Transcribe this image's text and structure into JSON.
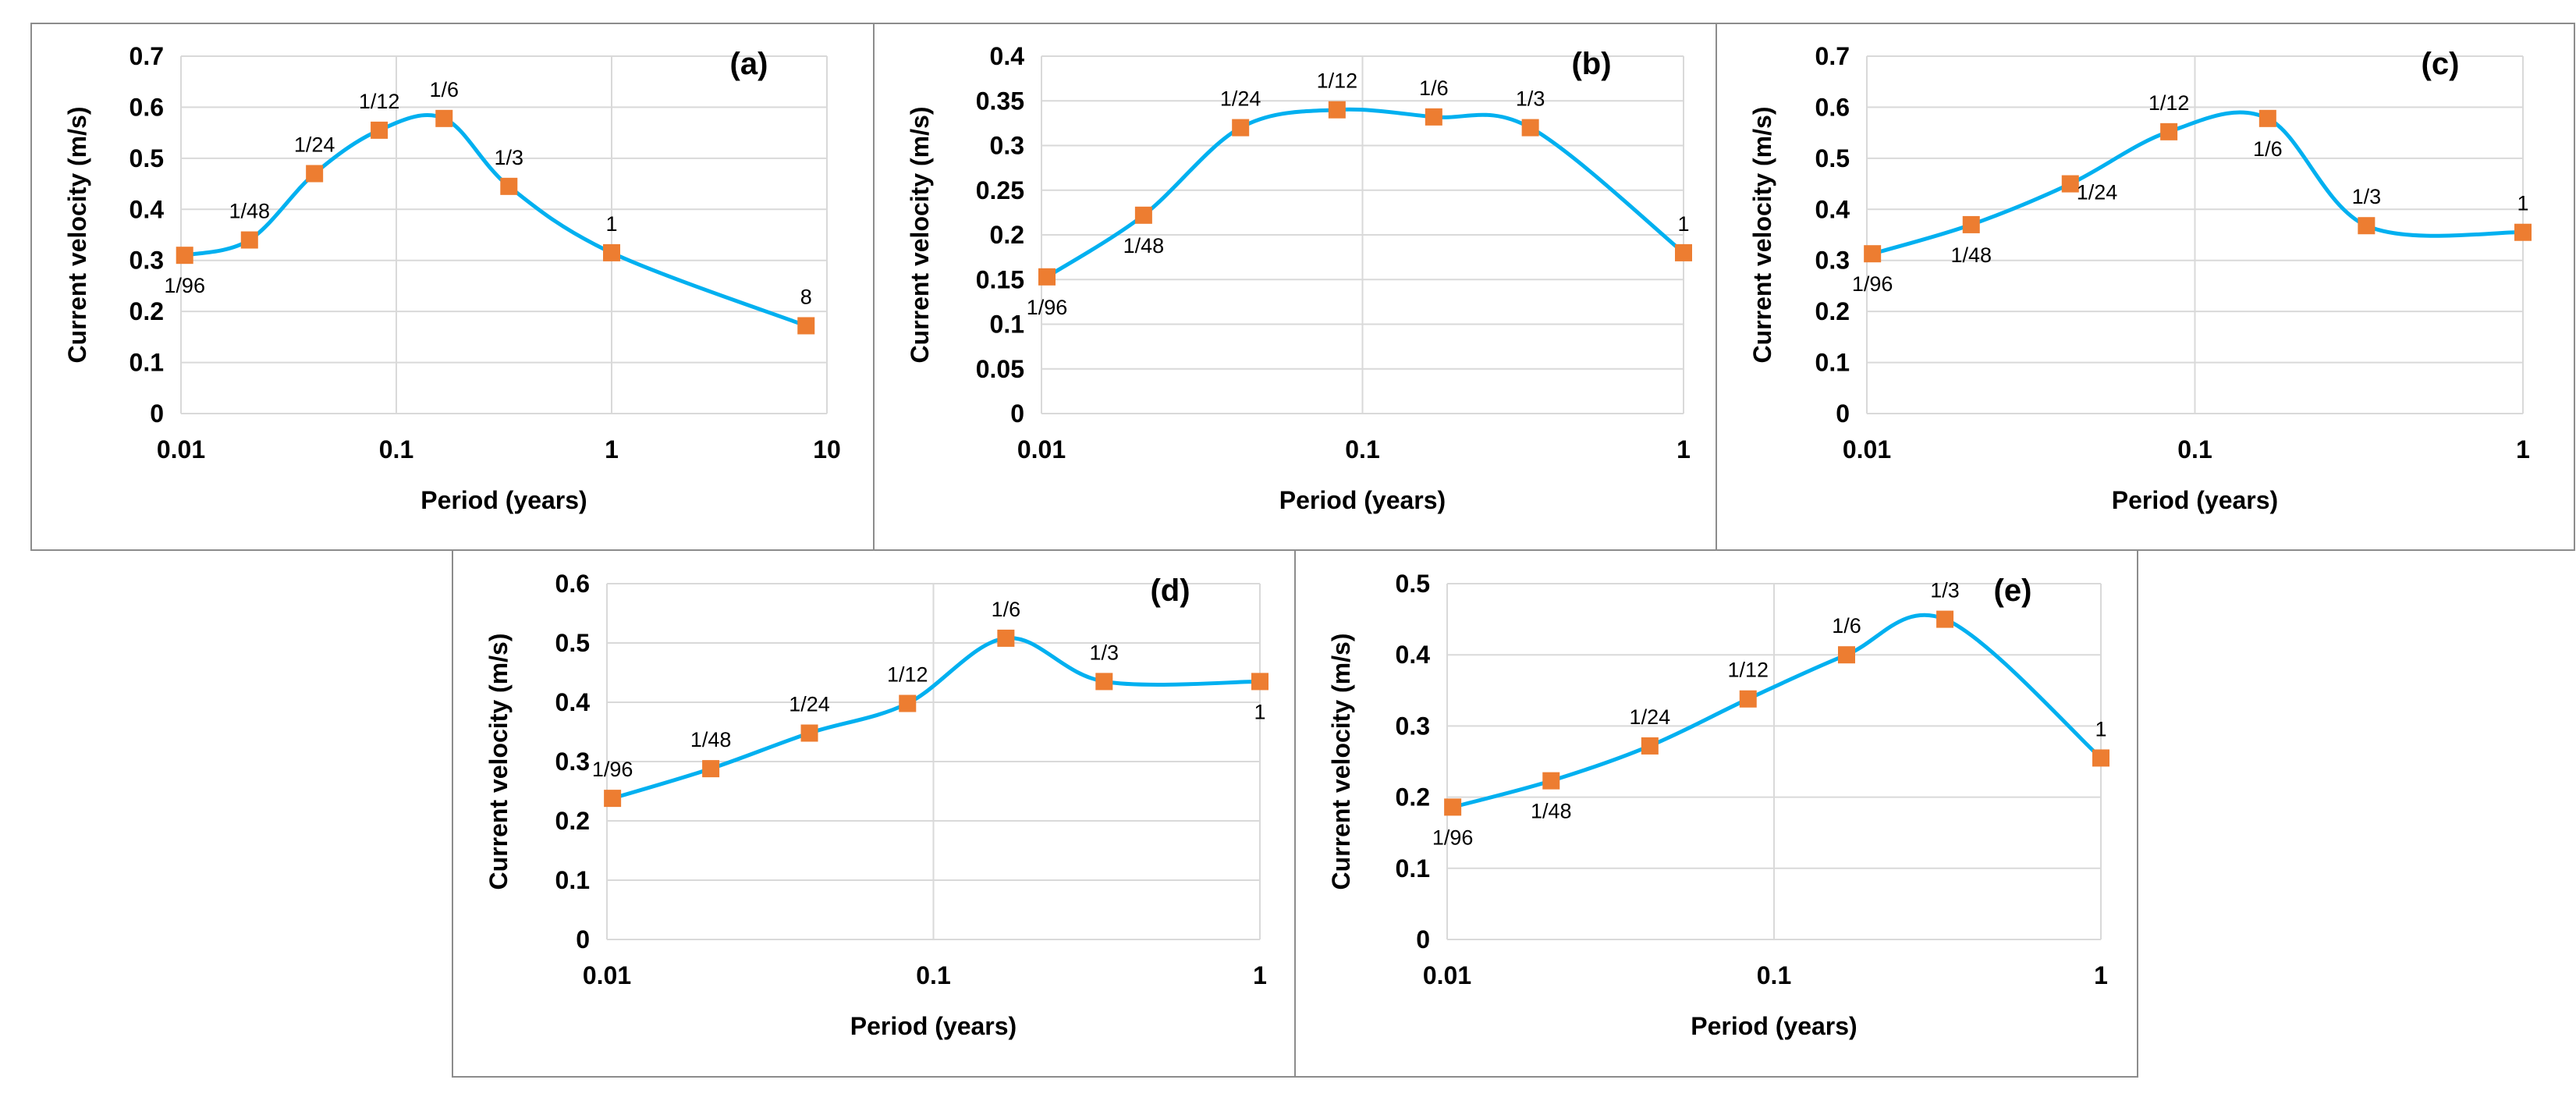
{
  "colors": {
    "line": "#00b0f0",
    "marker": "#ed7d31",
    "grid": "#d9d9d9",
    "border": "#8c8c8c"
  },
  "chart_data": [
    {
      "type": "line",
      "title": "(a)",
      "xlabel": "Period (years)",
      "ylabel": "Current velocity (m/s)",
      "xscale": "log",
      "xlim": [
        0.01,
        10
      ],
      "xticks": [
        0.01,
        0.1,
        1,
        10
      ],
      "xtick_labels": [
        "0.01",
        "0.1",
        "1",
        "10"
      ],
      "ylim": [
        0,
        0.7
      ],
      "yticks": [
        0,
        0.1,
        0.2,
        0.3,
        0.4,
        0.5,
        0.6,
        0.7
      ],
      "ytick_labels": [
        "0",
        "0.1",
        "0.2",
        "0.3",
        "0.4",
        "0.5",
        "0.6",
        "0.7"
      ],
      "x": [
        0.0104,
        0.0208,
        0.0417,
        0.0833,
        0.1667,
        0.3333,
        1,
        8
      ],
      "values": [
        0.31,
        0.34,
        0.47,
        0.555,
        0.578,
        0.445,
        0.315,
        0.172
      ],
      "labels": [
        "1/96",
        "1/48",
        "1/24",
        "1/12",
        "1/6",
        "1/3",
        "1",
        "8"
      ],
      "label_pos": [
        "below",
        "above",
        "above",
        "above",
        "above",
        "above",
        "above",
        "above"
      ]
    },
    {
      "type": "line",
      "title": "(b)",
      "xlabel": "Period (years)",
      "ylabel": "Current velocity (m/s)",
      "xscale": "log",
      "xlim": [
        0.01,
        1
      ],
      "xticks": [
        0.01,
        0.1,
        1
      ],
      "xtick_labels": [
        "0.01",
        "0.1",
        "1"
      ],
      "ylim": [
        0,
        0.4
      ],
      "yticks": [
        0,
        0.05,
        0.1,
        0.15,
        0.2,
        0.25,
        0.3,
        0.35,
        0.4
      ],
      "ytick_labels": [
        "0",
        "0.05",
        "0.1",
        "0.15",
        "0.2",
        "0.25",
        "0.3",
        "0.35",
        "0.4"
      ],
      "x": [
        0.0104,
        0.0208,
        0.0417,
        0.0833,
        0.1667,
        0.3333,
        1
      ],
      "values": [
        0.153,
        0.222,
        0.32,
        0.34,
        0.332,
        0.32,
        0.18
      ],
      "labels": [
        "1/96",
        "1/48",
        "1/24",
        "1/12",
        "1/6",
        "1/3",
        "1"
      ],
      "label_pos": [
        "below",
        "below",
        "above",
        "above",
        "above",
        "above",
        "above"
      ]
    },
    {
      "type": "line",
      "title": "(c)",
      "xlabel": "Period (years)",
      "ylabel": "Current velocity (m/s)",
      "xscale": "log",
      "xlim": [
        0.01,
        1
      ],
      "xticks": [
        0.01,
        0.1,
        1
      ],
      "xtick_labels": [
        "0.01",
        "0.1",
        "1"
      ],
      "ylim": [
        0,
        0.7
      ],
      "yticks": [
        0,
        0.1,
        0.2,
        0.3,
        0.4,
        0.5,
        0.6,
        0.7
      ],
      "ytick_labels": [
        "0",
        "0.1",
        "0.2",
        "0.3",
        "0.4",
        "0.5",
        "0.6",
        "0.7"
      ],
      "x": [
        0.0104,
        0.0208,
        0.0417,
        0.0833,
        0.1667,
        0.3333,
        1
      ],
      "values": [
        0.313,
        0.37,
        0.45,
        0.552,
        0.578,
        0.368,
        0.355
      ],
      "labels": [
        "1/96",
        "1/48",
        "1/24",
        "1/12",
        "1/6",
        "1/3",
        "1"
      ],
      "label_pos": [
        "below",
        "below",
        "right",
        "above",
        "below",
        "above",
        "above"
      ]
    },
    {
      "type": "line",
      "title": "(d)",
      "xlabel": "Period (years)",
      "ylabel": "Current velocity (m/s)",
      "xscale": "log",
      "xlim": [
        0.01,
        1
      ],
      "xticks": [
        0.01,
        0.1,
        1
      ],
      "xtick_labels": [
        "0.01",
        "0.1",
        "1"
      ],
      "ylim": [
        0,
        0.6
      ],
      "yticks": [
        0,
        0.1,
        0.2,
        0.3,
        0.4,
        0.5,
        0.6
      ],
      "ytick_labels": [
        "0",
        "0.1",
        "0.2",
        "0.3",
        "0.4",
        "0.5",
        "0.6"
      ],
      "x": [
        0.0104,
        0.0208,
        0.0417,
        0.0833,
        0.1667,
        0.3333,
        1
      ],
      "values": [
        0.238,
        0.288,
        0.348,
        0.398,
        0.508,
        0.435,
        0.435
      ],
      "labels": [
        "1/96",
        "1/48",
        "1/24",
        "1/12",
        "1/6",
        "1/3",
        "1"
      ],
      "label_pos": [
        "above",
        "above",
        "above",
        "above",
        "above",
        "above",
        "below"
      ]
    },
    {
      "type": "line",
      "title": "(e)",
      "xlabel": "Period (years)",
      "ylabel": "Current velocity (m/s)",
      "xscale": "log",
      "xlim": [
        0.01,
        1
      ],
      "xticks": [
        0.01,
        0.1,
        1
      ],
      "xtick_labels": [
        "0.01",
        "0.1",
        "1"
      ],
      "ylim": [
        0,
        0.5
      ],
      "yticks": [
        0,
        0.1,
        0.2,
        0.3,
        0.4,
        0.5
      ],
      "ytick_labels": [
        "0",
        "0.1",
        "0.2",
        "0.3",
        "0.4",
        "0.5"
      ],
      "x": [
        0.0104,
        0.0208,
        0.0417,
        0.0833,
        0.1667,
        0.3333,
        1
      ],
      "values": [
        0.186,
        0.223,
        0.272,
        0.338,
        0.4,
        0.45,
        0.255
      ],
      "labels": [
        "1/96",
        "1/48",
        "1/24",
        "1/12",
        "1/6",
        "1/3",
        "1"
      ],
      "label_pos": [
        "below",
        "below",
        "above",
        "above",
        "above",
        "above",
        "above"
      ]
    }
  ]
}
